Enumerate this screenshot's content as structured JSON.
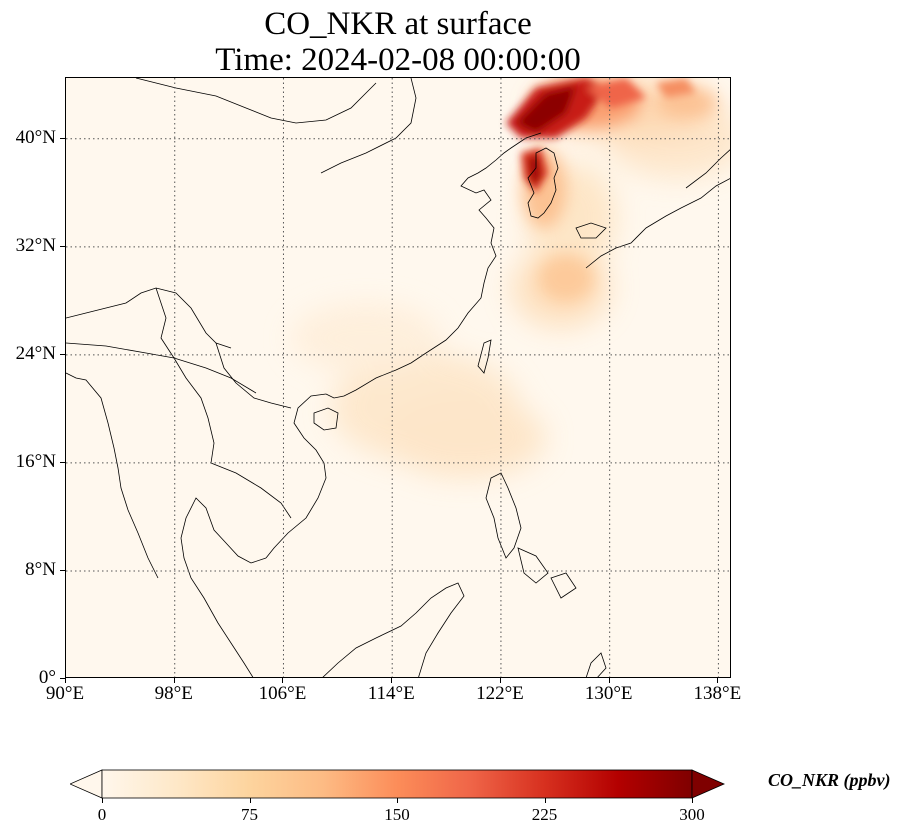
{
  "title": {
    "line1": "CO_NKR at surface",
    "line2": "Time: 2024-02-08 00:00:00"
  },
  "map": {
    "lon_range": [
      90,
      139
    ],
    "lat_range": [
      0,
      44.5
    ],
    "lat_ticks": [
      "0°",
      "8°N",
      "16°N",
      "24°N",
      "32°N",
      "40°N"
    ],
    "lon_ticks": [
      "90°E",
      "98°E",
      "106°E",
      "114°E",
      "122°E",
      "130°E",
      "138°E"
    ],
    "gridlines": "dotted"
  },
  "colorbar": {
    "label": "CO_NKR (ppbv)",
    "min": 0,
    "max": 300,
    "extend": "both",
    "colormap": "OrRd",
    "ticks": [
      "0",
      "75",
      "150",
      "225",
      "300"
    ]
  },
  "colors": {
    "background": "#fff8ee",
    "low": "#fff7ec",
    "mid": "#fdbb84",
    "high": "#7f0000"
  }
}
